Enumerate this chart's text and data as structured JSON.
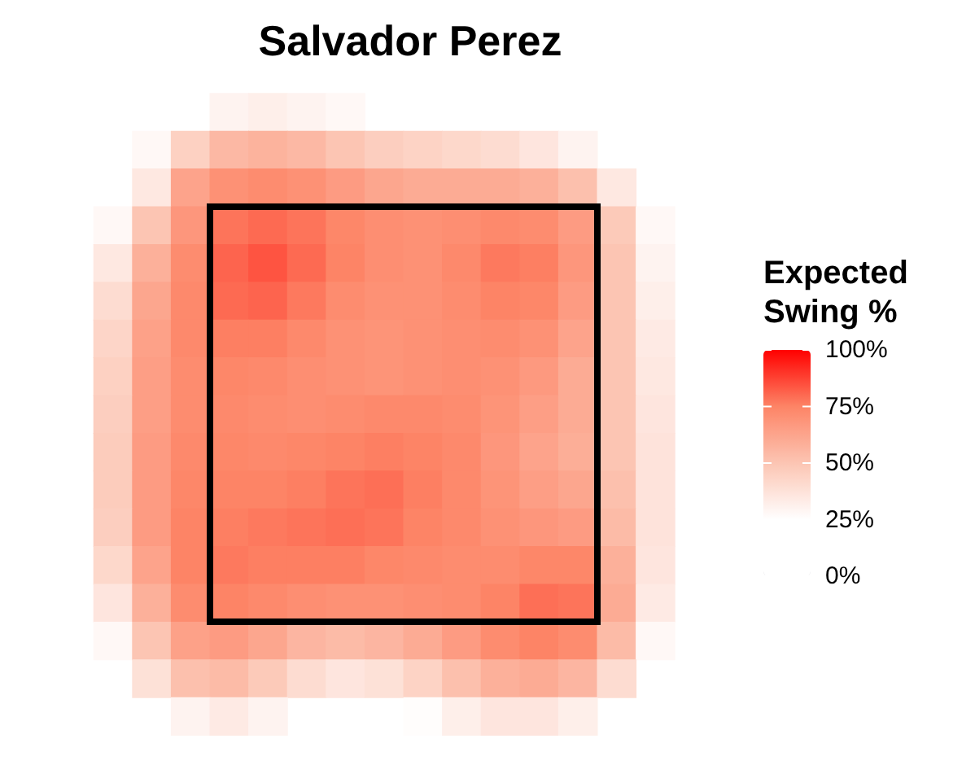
{
  "chart_data": {
    "type": "heatmap",
    "title": "Salvador Perez",
    "clabel": "Expected Swing %",
    "categories": [
      null,
      null,
      null,
      null,
      null,
      null,
      null,
      null,
      null,
      null,
      null,
      null,
      null,
      null,
      null
    ],
    "y_categories": [
      null,
      null,
      null,
      null,
      null,
      null,
      null,
      null,
      null,
      null,
      null,
      null,
      null,
      null,
      null,
      null,
      null
    ],
    "cells": [
      [
        null,
        null,
        null,
        30,
        32,
        30,
        28,
        null,
        null,
        null,
        null,
        null,
        null,
        null,
        null
      ],
      [
        null,
        28,
        45,
        55,
        57,
        55,
        50,
        46,
        44,
        42,
        40,
        36,
        30,
        null,
        null
      ],
      [
        null,
        35,
        63,
        70,
        72,
        70,
        66,
        62,
        60,
        60,
        60,
        58,
        52,
        35,
        null
      ],
      [
        28,
        50,
        68,
        78,
        80,
        78,
        74,
        71,
        70,
        71,
        73,
        72,
        66,
        48,
        28
      ],
      [
        35,
        58,
        72,
        81,
        84,
        80,
        75,
        71,
        70,
        73,
        77,
        76,
        68,
        50,
        30
      ],
      [
        40,
        62,
        73,
        80,
        81,
        77,
        72,
        70,
        70,
        72,
        75,
        74,
        66,
        50,
        32
      ],
      [
        43,
        64,
        73,
        76,
        76,
        73,
        70,
        69,
        70,
        71,
        72,
        70,
        63,
        50,
        34
      ],
      [
        45,
        65,
        72,
        74,
        73,
        71,
        70,
        69,
        70,
        71,
        70,
        67,
        60,
        50,
        35
      ],
      [
        46,
        65,
        72,
        73,
        72,
        71,
        72,
        73,
        73,
        72,
        69,
        65,
        60,
        50,
        36
      ],
      [
        47,
        66,
        73,
        74,
        73,
        74,
        75,
        76,
        75,
        73,
        68,
        63,
        59,
        50,
        37
      ],
      [
        47,
        66,
        74,
        75,
        75,
        76,
        78,
        79,
        76,
        73,
        69,
        65,
        62,
        52,
        37
      ],
      [
        46,
        66,
        75,
        76,
        77,
        78,
        79,
        78,
        75,
        73,
        70,
        68,
        66,
        54,
        37
      ],
      [
        42,
        63,
        75,
        77,
        76,
        76,
        76,
        74,
        73,
        72,
        72,
        74,
        74,
        58,
        36
      ],
      [
        36,
        58,
        72,
        75,
        73,
        71,
        70,
        70,
        71,
        72,
        75,
        79,
        78,
        60,
        34
      ],
      [
        28,
        50,
        64,
        66,
        62,
        56,
        54,
        56,
        60,
        66,
        72,
        75,
        72,
        54,
        28
      ],
      [
        null,
        38,
        52,
        54,
        48,
        40,
        36,
        38,
        44,
        52,
        58,
        60,
        56,
        40,
        null
      ],
      [
        null,
        null,
        30,
        34,
        30,
        null,
        null,
        null,
        26,
        32,
        36,
        36,
        32,
        null,
        null
      ]
    ],
    "clim": [
      0,
      100
    ],
    "cticks": [
      {
        "value": 0,
        "label": "0%"
      },
      {
        "value": 25,
        "label": "25%"
      },
      {
        "value": 50,
        "label": "50%"
      },
      {
        "value": 75,
        "label": "75%"
      },
      {
        "value": 100,
        "label": "100%"
      }
    ],
    "colors": [
      "#ffffff",
      "#ffffff",
      "#fcc5b3",
      "#fd8466",
      "#ff0000"
    ]
  }
}
